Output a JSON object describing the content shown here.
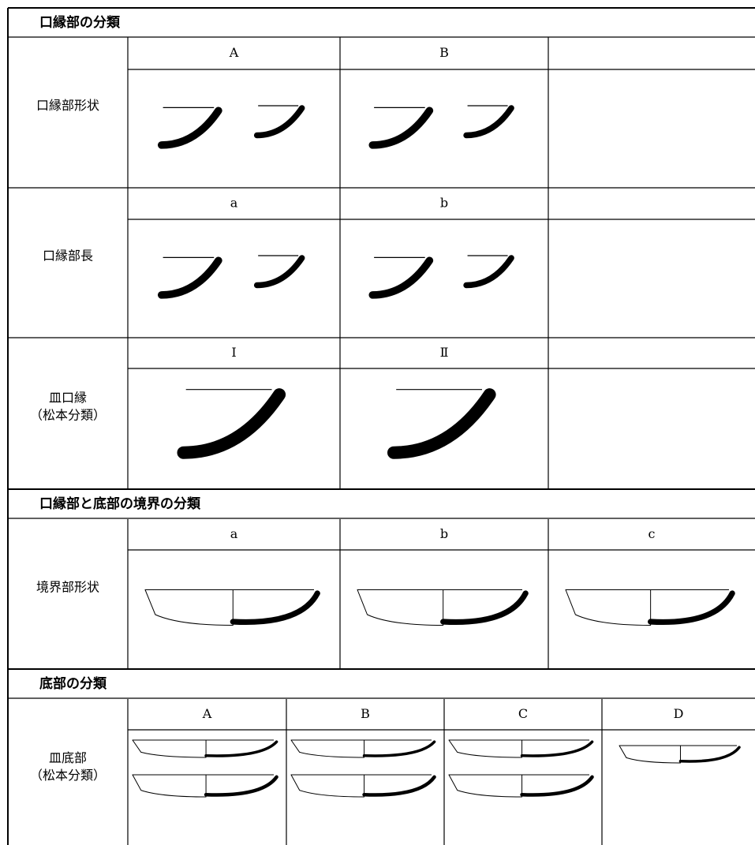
{
  "sections": [
    {
      "title": "口縁部の分類",
      "rows": [
        {
          "label": [
            "口縁部形状"
          ],
          "columns": [
            "A",
            "B"
          ]
        },
        {
          "label": [
            "口縁部長"
          ],
          "columns": [
            "a",
            "b"
          ]
        },
        {
          "label": [
            "皿口縁",
            "（松本分類）"
          ],
          "columns": [
            "Ⅰ",
            "Ⅱ"
          ]
        }
      ]
    },
    {
      "title": "口縁部と底部の境界の分類",
      "rows": [
        {
          "label": [
            "境界部形状"
          ],
          "columns": [
            "a",
            "b",
            "c"
          ]
        }
      ]
    },
    {
      "title": "底部の分類",
      "rows": [
        {
          "label": [
            "皿底部",
            "（松本分類）"
          ],
          "columns": [
            "A",
            "B",
            "C",
            "D"
          ]
        }
      ]
    }
  ]
}
